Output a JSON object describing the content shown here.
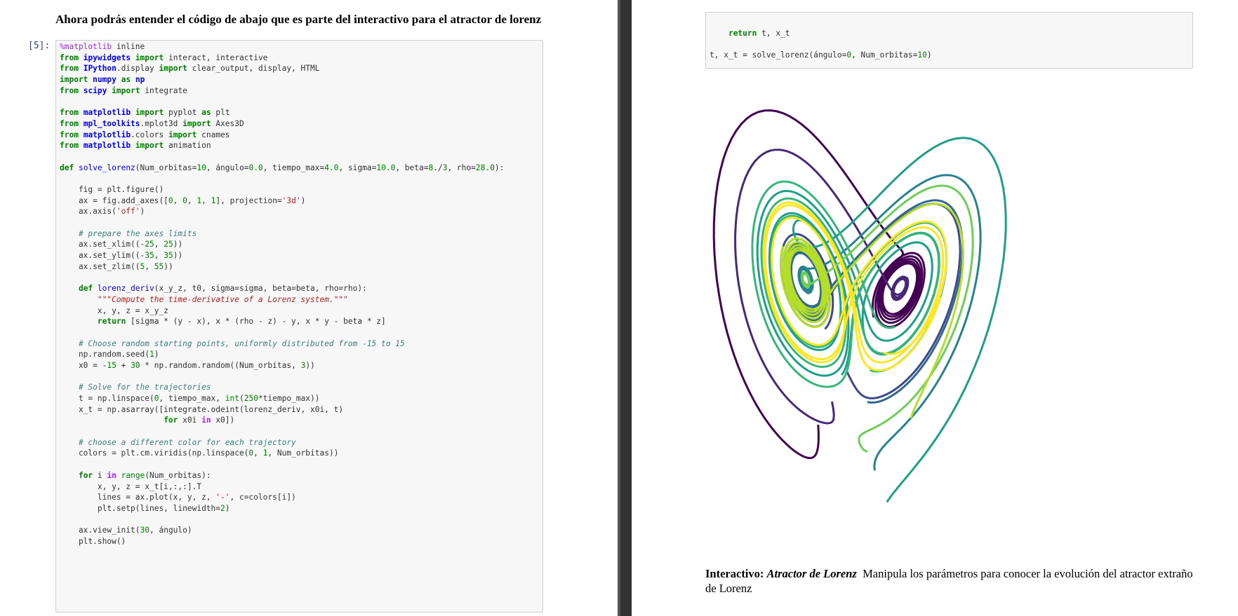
{
  "left": {
    "heading": "Ahora podrás entender el código de abajo que es parte del interactivo para el atractor de lorenz",
    "prompt": "[5]:",
    "code": [
      [
        "%matplotlib inline",
        "from ipywidgets import interact, interactive",
        "from IPython.display import clear_output, display, HTML",
        "import numpy as np",
        "from scipy import integrate"
      ],
      [
        "from matplotlib import pyplot as plt",
        "from mpl_toolkits.mplot3d import Axes3D",
        "from matplotlib.colors import cnames",
        "from matplotlib import animation"
      ],
      [
        "def solve_lorenz(Num_orbitas=10, ángulo=0.0, tiempo_max=4.0, sigma=10.0, beta=8./3, rho=28.0):"
      ],
      [
        "    fig = plt.figure()",
        "    ax = fig.add_axes([0, 0, 1, 1], projection='3d')",
        "    ax.axis('off')"
      ],
      [
        "    # prepare the axes limits",
        "    ax.set_xlim((-25, 25))",
        "    ax.set_ylim((-35, 35))",
        "    ax.set_zlim((5, 55))"
      ],
      [
        "    def lorenz_deriv(x_y_z, t0, sigma=sigma, beta=beta, rho=rho):",
        "        \"\"\"Compute the time-derivative of a Lorenz system.\"\"\"",
        "        x, y, z = x_y_z",
        "        return [sigma * (y - x), x * (rho - z) - y, x * y - beta * z]"
      ],
      [
        "    # Choose random starting points, uniformly distributed from -15 to 15",
        "    np.random.seed(1)",
        "    x0 = -15 + 30 * np.random.random((Num_orbitas, 3))"
      ],
      [
        "    # Solve for the trajectories",
        "    t = np.linspace(0, tiempo_max, int(250*tiempo_max))",
        "    x_t = np.asarray([integrate.odeint(lorenz_deriv, x0i, t)",
        "                      for x0i in x0])"
      ],
      [
        "    # choose a different color for each trajectory",
        "    colors = plt.cm.viridis(np.linspace(0, 1, Num_orbitas))"
      ],
      [
        "    for i in range(Num_orbitas):",
        "        x, y, z = x_t[i,:,:].T",
        "        lines = ax.plot(x, y, z, '-', c=colors[i])",
        "        plt.setp(lines, linewidth=2)"
      ],
      [
        "    ax.view_init(30, ángulo)",
        "    plt.show()"
      ]
    ]
  },
  "right": {
    "code": [
      [
        "    return t, x_t"
      ],
      [
        "t, x_t = solve_lorenz(ángulo=0, Num_orbitas=10)"
      ]
    ],
    "caption": {
      "label": "Interactivo:",
      "title": "Atractor de Lorenz",
      "text": "Manipula los parámetros para conocer la evolución del atractor extraño de Lorenz"
    }
  }
}
